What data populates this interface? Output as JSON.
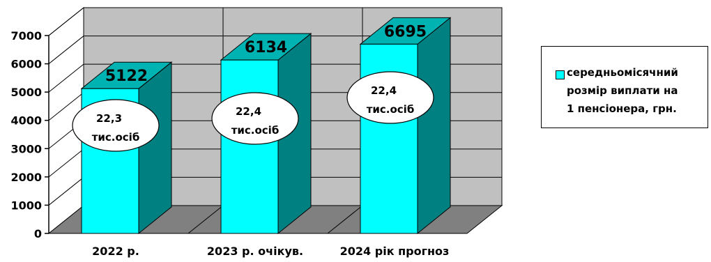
{
  "chart_data": {
    "type": "bar",
    "categories": [
      "2022 р.",
      "2023 р. очікув.",
      "2024 рік прогноз"
    ],
    "series": [
      {
        "name": "середньомісячний розмір виплати на 1 пенсіонера, грн.",
        "values": [
          5122,
          6134,
          6695
        ]
      }
    ],
    "ylim": [
      0,
      7000
    ],
    "yticks": [
      0,
      1000,
      2000,
      3000,
      4000,
      5000,
      6000,
      7000
    ],
    "grid": true,
    "legend": "right",
    "annotations": [
      {
        "category": "2022 р.",
        "lines": [
          "22,3",
          "тис.осіб"
        ]
      },
      {
        "category": "2023 р. очікув.",
        "lines": [
          "22,4",
          "тис.осіб"
        ]
      },
      {
        "category": "2024 рік прогноз",
        "lines": [
          "22,4",
          "тис.осіб"
        ]
      }
    ],
    "colors": {
      "bar_front": "#00ffff",
      "bar_side": "#008080",
      "bar_top": "#00b3b3",
      "back_wall": "#c0c0c0",
      "side_wall": "#ffffff",
      "floor": "#808080"
    }
  },
  "legend": {
    "label": "середньомісячний\nрозмір виплати на\n1 пенсіонера, грн."
  }
}
